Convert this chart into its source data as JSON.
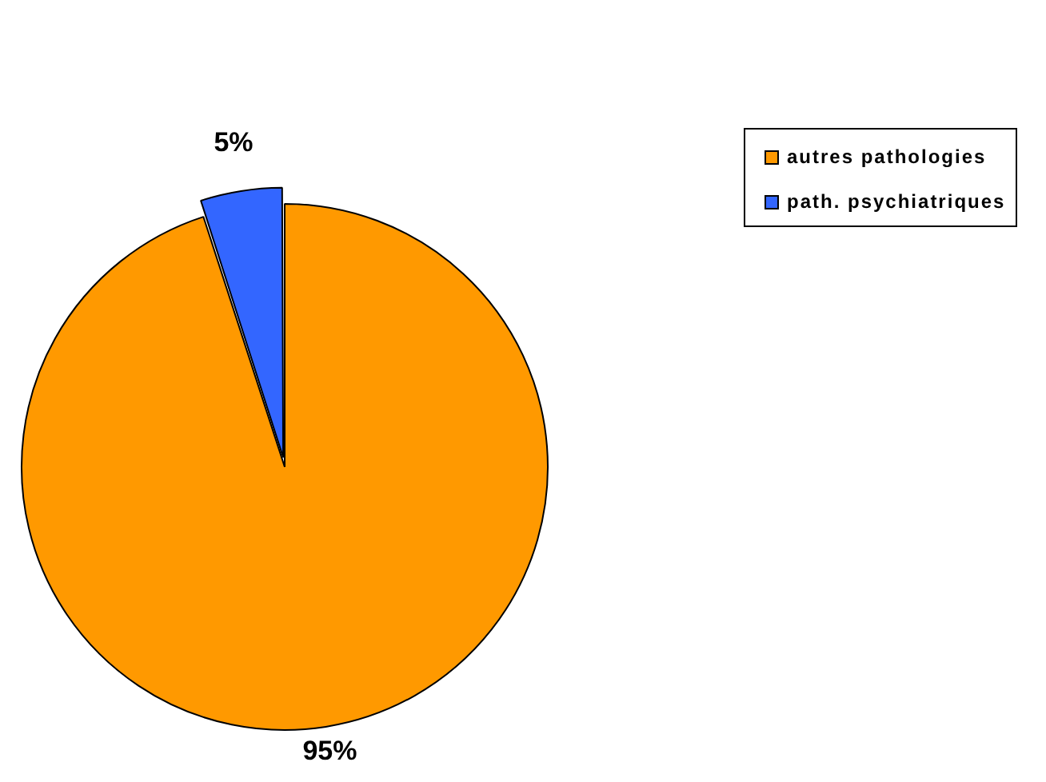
{
  "chart_data": {
    "type": "pie",
    "categories": [
      "autres pathologies",
      "path. psychiatriques"
    ],
    "values": [
      95,
      5
    ],
    "colors": [
      "#ff9900",
      "#3366ff"
    ],
    "value_labels": [
      "95%",
      "5%"
    ],
    "legend": "top right"
  }
}
